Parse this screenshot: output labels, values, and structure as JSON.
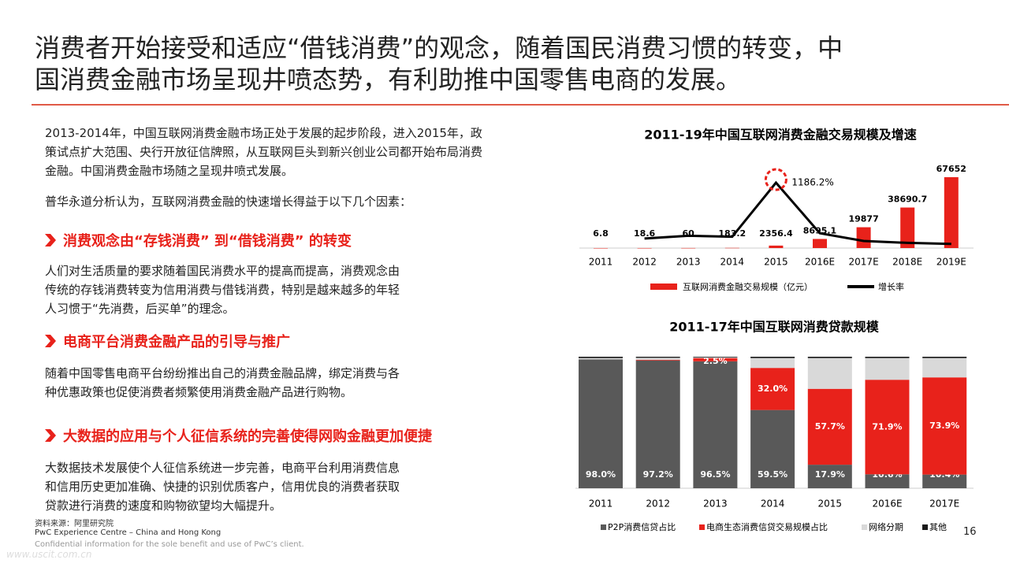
{
  "slide": {
    "title": [
      "消费者开始接受和适应“借钱消费”的观念，随着国民消费习惯的转变，中",
      "国消费金融市场呈现井喷态势，有利助推中国零售电商的发展。"
    ],
    "intro": [
      "2013-2014年，中国互联网消费金融市场正处于发展的起步阶段，进入2015年，政",
      "策试点扩大范围、央行开放征信牌照，从互联网巨头到新兴创业公司都开始布局消费",
      "金融。中国消费金融市场随之呈现井喷式发展。"
    ],
    "lead": "普华永道分析认为，互联网消费金融的快速增长得益于以下几个因素：",
    "sections": [
      {
        "heading": "消费观念由“存钱消费” 到“借钱消费” 的转变",
        "body": [
          "人们对生活质量的要求随着国民消费水平的提高而提高，消费观念由",
          "传统的存钱消费转变为信用消费与借钱消费，特别是越来越多的年轻",
          "人习惯于“先消费，后买单”的理念。"
        ]
      },
      {
        "heading": "电商平台消费金融产品的引导与推广",
        "body": [
          "随着中国零售电商平台纷纷推出自己的消费金融品牌，绑定消费与各",
          "种优惠政策也促使消费者频繁使用消费金融产品进行购物。"
        ]
      },
      {
        "heading": "大数据的应用与个人征信系统的完善使得网购金融更加便捷",
        "body": [
          "大数据技术发展使个人征信系统进一步完善，电商平台利用消费信息",
          "和信用历史更加准确、快捷的识别优质客户，信用优良的消费者获取",
          "贷款进行消费的速度和购物欲望均大幅提升。"
        ]
      }
    ],
    "source": [
      "资料来源：阿里研究院",
      "PwC Experience Centre – China and Hong Kong",
      "Confidential information for the sole benefit and use of PwC’s client."
    ],
    "page": "16",
    "watermark": "www.uscit.com.cn"
  },
  "chart_data": [
    {
      "type": "bar-line",
      "title": "2011-19年中国互联网消费金融交易规模及增速",
      "categories": [
        "2011",
        "2012",
        "2013",
        "2014",
        "2015",
        "2016E",
        "2017E",
        "2018E",
        "2019E"
      ],
      "series": [
        {
          "name": "互联网消费金融交易规模（亿元）",
          "color": "#e8221b",
          "kind": "bar",
          "values": [
            6.8,
            18.6,
            60,
            183.2,
            2356.4,
            8695.1,
            19877,
            38690.7,
            67652
          ]
        },
        {
          "name": "增长率",
          "color": "#000000",
          "kind": "line",
          "values": [
            null,
            173.5,
            222.6,
            205.3,
            1186.2,
            269,
            128.6,
            94.6,
            74.9
          ],
          "value_labels": [
            null,
            null,
            null,
            null,
            "1186.2%",
            null,
            null,
            null,
            null
          ]
        }
      ]
    },
    {
      "type": "stacked-bar",
      "title": "2011-17年中国互联网消费贷款规模",
      "categories": [
        "2011",
        "2012",
        "2013",
        "2014",
        "2015",
        "2016E",
        "2017E"
      ],
      "series": [
        {
          "name": "P2P消费信贷占比",
          "color": "#595959",
          "values": [
            98.0,
            97.2,
            96.5,
            59.5,
            17.9,
            10.6,
            10.4
          ],
          "value_labels": [
            "98.0%",
            "97.2%",
            "96.5%",
            "59.5%",
            "17.9%",
            "10.6%",
            "10.4%"
          ]
        },
        {
          "name": "电商生态消费信贷交易规模占比",
          "color": "#e8221b",
          "values": [
            0,
            0.5,
            2.5,
            32.0,
            57.7,
            71.9,
            73.9
          ],
          "value_labels": [
            null,
            null,
            "2.5%",
            "32.0%",
            "57.7%",
            "71.9%",
            "73.9%"
          ]
        },
        {
          "name": "网络分期",
          "color": "#d9d9d9",
          "values": [
            1.0,
            1.5,
            0.5,
            7.5,
            23.4,
            16.5,
            14.7
          ]
        },
        {
          "name": "其他",
          "color": "#1a1a1a",
          "values": [
            1.0,
            0.8,
            0.5,
            1.0,
            1.0,
            1.0,
            1.0
          ]
        }
      ]
    }
  ]
}
